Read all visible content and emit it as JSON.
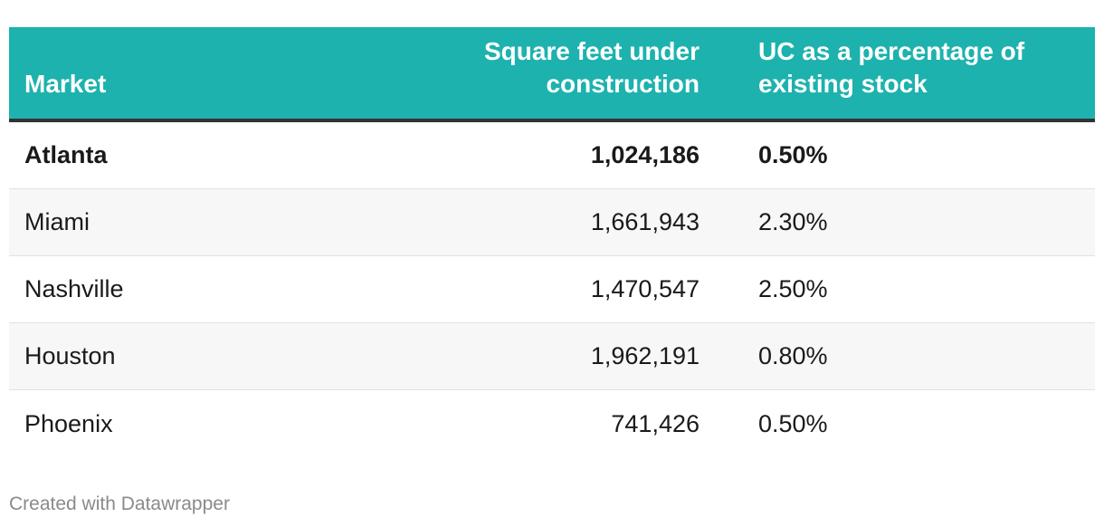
{
  "chart_data": {
    "type": "table",
    "columns": [
      "Market",
      "Square feet under construction",
      "UC as a percentage of existing stock"
    ],
    "rows": [
      {
        "market": "Atlanta",
        "sqft": "1,024,186",
        "uc_pct": "0.50%",
        "highlight": true
      },
      {
        "market": "Miami",
        "sqft": "1,661,943",
        "uc_pct": "2.30%",
        "highlight": false
      },
      {
        "market": "Nashville",
        "sqft": "1,470,547",
        "uc_pct": "2.50%",
        "highlight": false
      },
      {
        "market": "Houston",
        "sqft": "1,962,191",
        "uc_pct": "0.80%",
        "highlight": false
      },
      {
        "market": "Phoenix",
        "sqft": "741,426",
        "uc_pct": "0.50%",
        "highlight": false
      }
    ],
    "values": {
      "sqft": [
        1024186,
        1661943,
        1470547,
        1962191,
        741426
      ],
      "uc_pct": [
        0.5,
        2.3,
        2.5,
        0.8,
        0.5
      ]
    }
  },
  "header": {
    "market": "Market",
    "sqft": "Square feet under construction",
    "uc_pct": "UC as a percentage of existing stock"
  },
  "footer": {
    "credit": "Created with Datawrapper"
  },
  "colors": {
    "header_bg": "#1db2ae",
    "header_text": "#ffffff",
    "header_rule": "#333333",
    "stripe": "#f7f7f7",
    "credit_text": "#8a8a8a"
  }
}
